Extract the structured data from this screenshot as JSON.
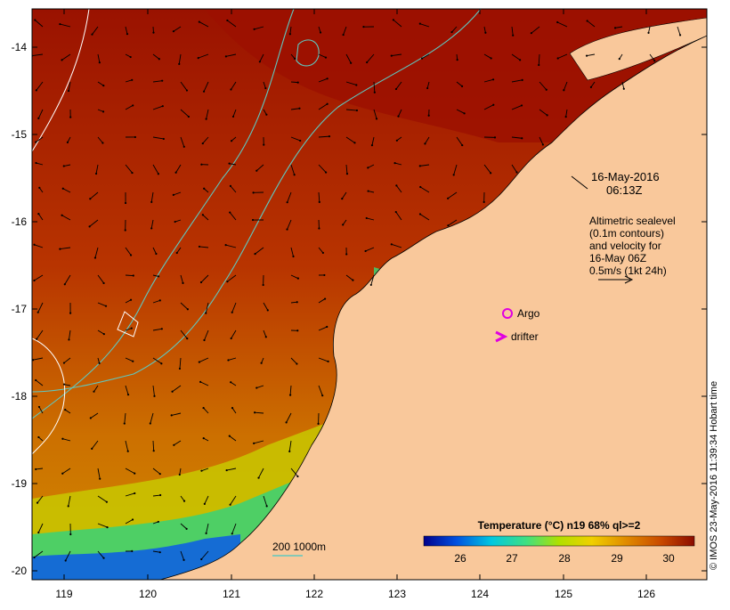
{
  "map": {
    "timestamp_date": "16-May-2016",
    "timestamp_time": "06:13Z",
    "altimetry_lines": [
      "Altimetric sealevel",
      "(0.1m contours)",
      "and velocity for",
      "16-May 06Z",
      "0.5m/s (1kt 24h)"
    ],
    "argo_label": "Argo",
    "drifter_label": "drifter",
    "scale_label": "200  1000m",
    "credit": "© IMOS 23-May-2016 11:39:34 Hobart time",
    "lat_ticks": [
      "-14",
      "-15",
      "-16",
      "-17",
      "-18",
      "-19",
      "-20"
    ],
    "lon_ticks": [
      "119",
      "120",
      "121",
      "122",
      "123",
      "124",
      "125",
      "126"
    ],
    "colorbar": {
      "title": "Temperature (°C) n19 68% ql>=2",
      "ticks": [
        "26",
        "27",
        "28",
        "29",
        "30"
      ],
      "range": [
        25.5,
        30.5
      ]
    },
    "colors": {
      "land": "#f9c89b",
      "sea_warm": "#a01800",
      "sea_mid": "#c85c00",
      "contour_cyan": "#5fc8c0",
      "marker_magenta": "#e000e0"
    }
  }
}
